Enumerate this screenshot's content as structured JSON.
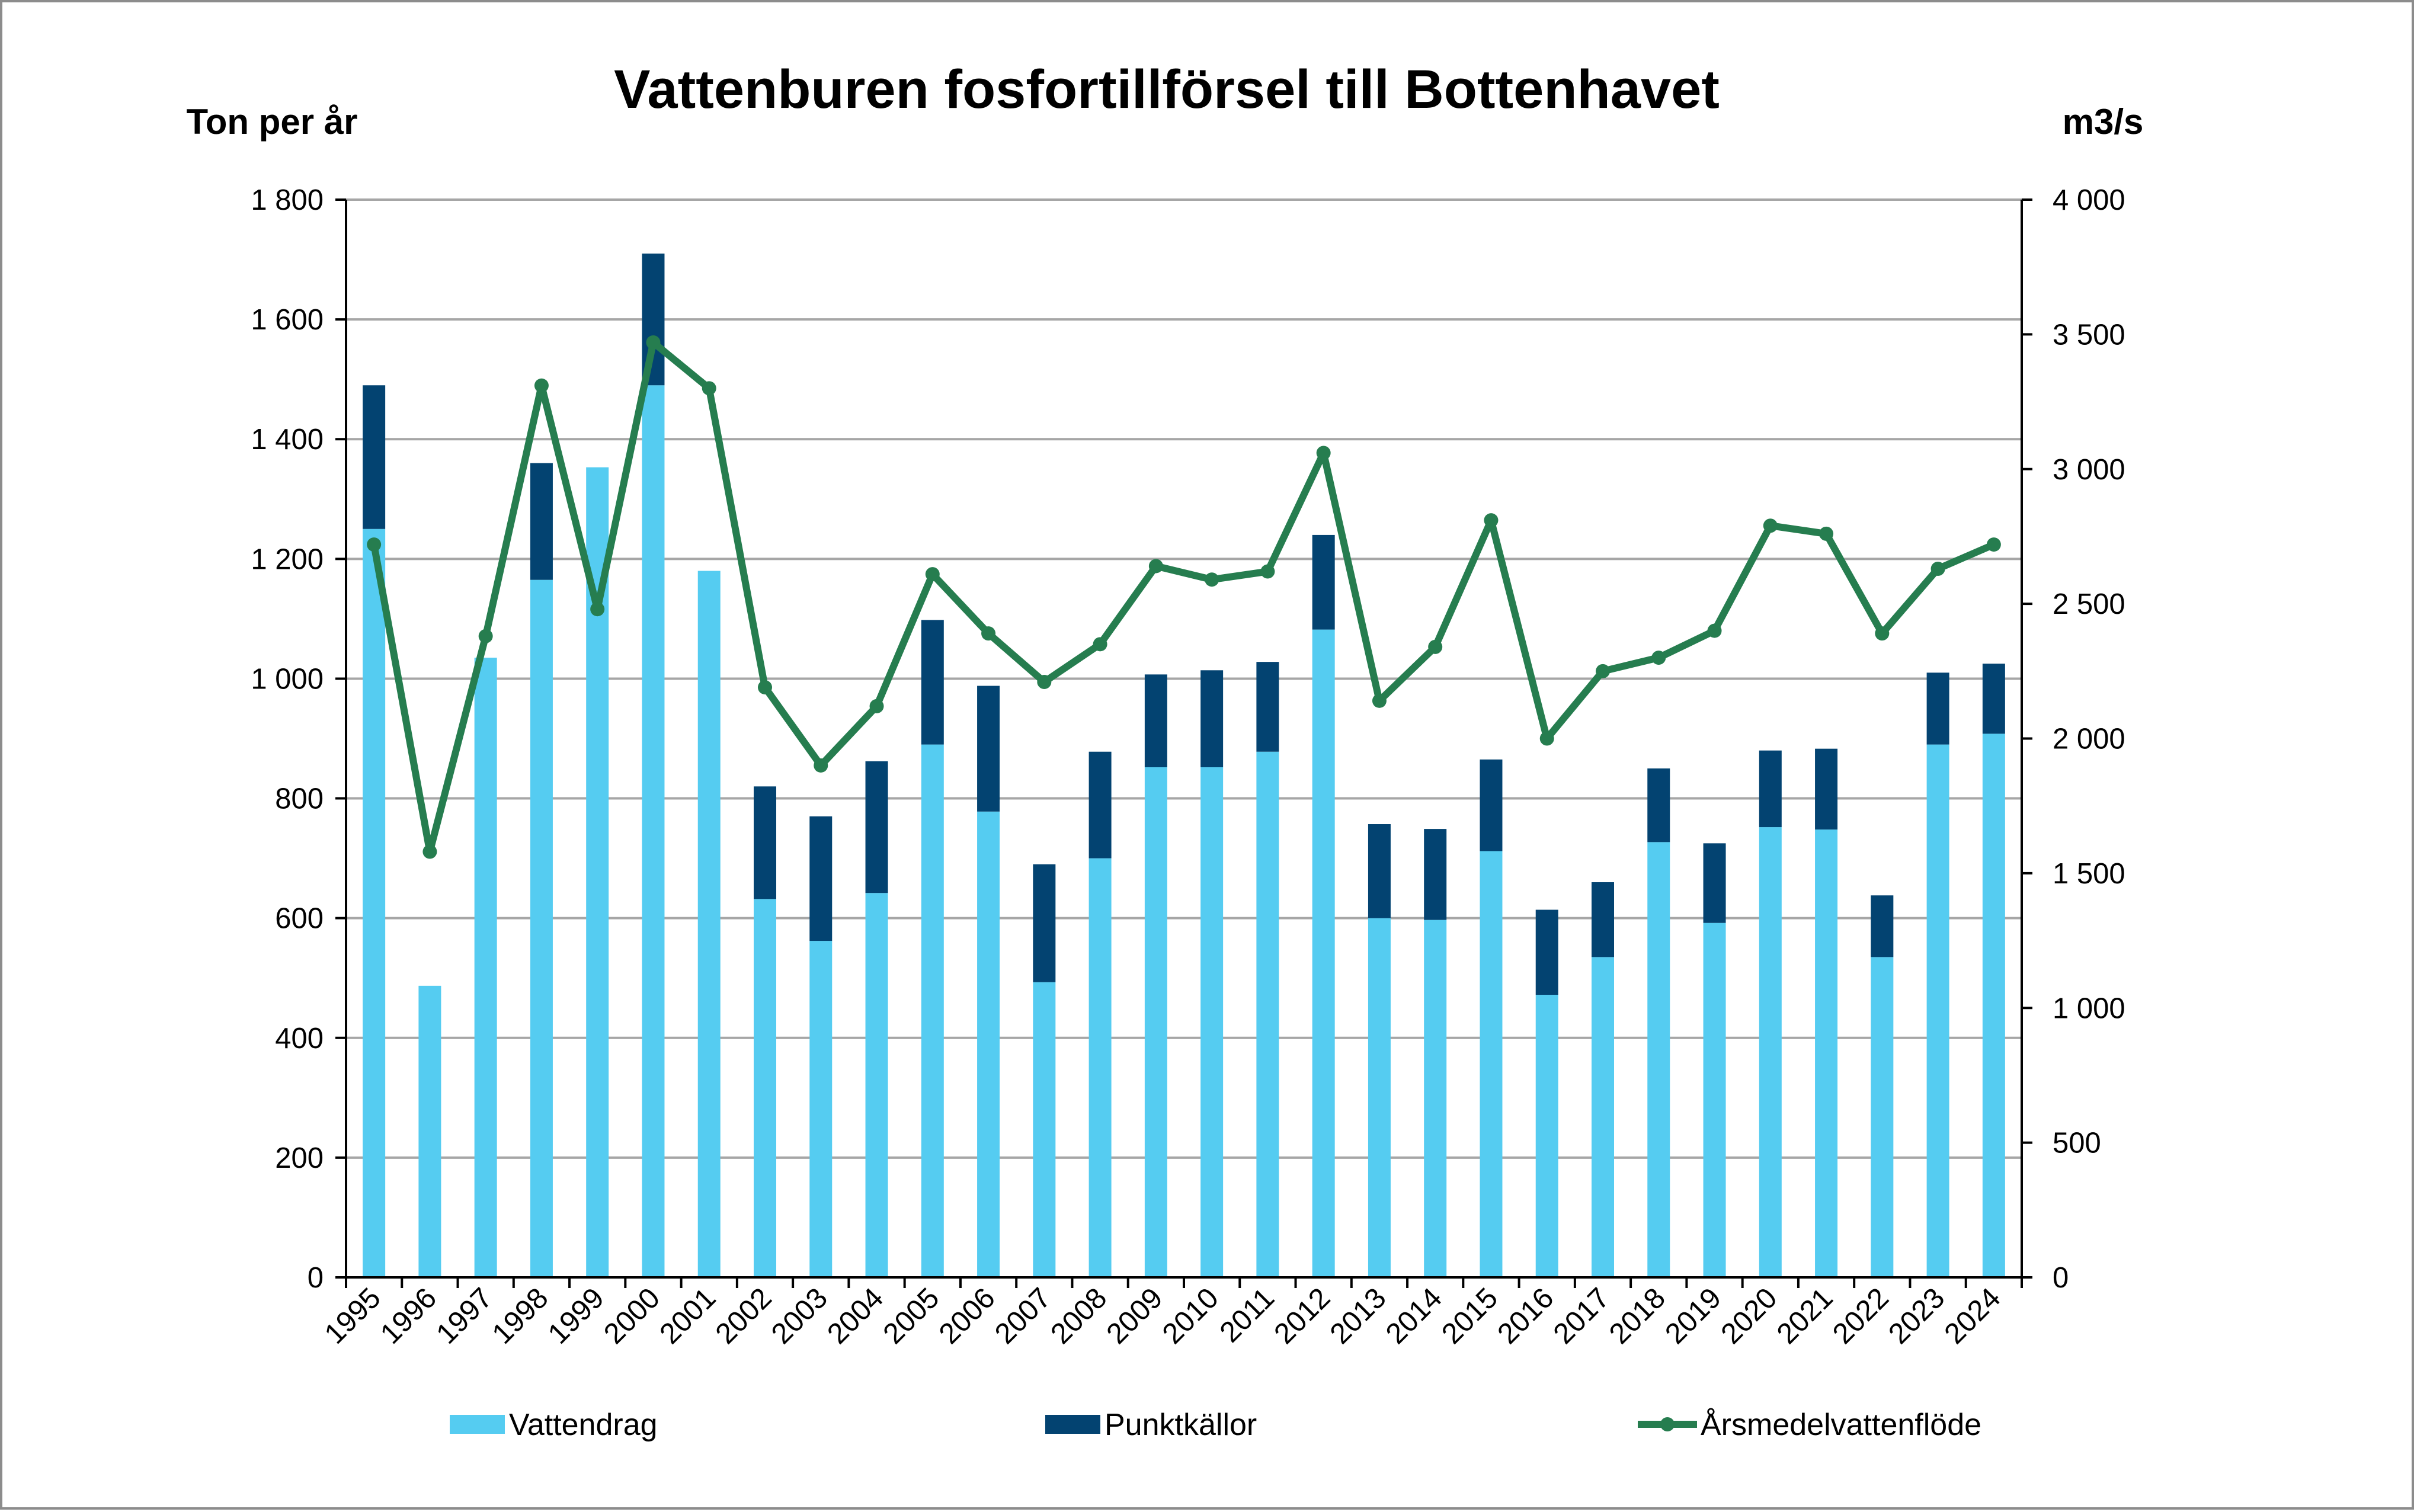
{
  "chart_data": {
    "type": "bar",
    "stacked": true,
    "title": "Vattenburen fosfortillförsel till Bottenhavet",
    "ylabel": "Ton per år",
    "y2label": "m3/s",
    "ylim": [
      0,
      1800
    ],
    "y2lim": [
      0,
      4000
    ],
    "yticks": [
      0,
      200,
      400,
      600,
      800,
      1000,
      1200,
      1400,
      1600,
      1800
    ],
    "y2ticks": [
      0,
      500,
      1000,
      1500,
      2000,
      2500,
      3000,
      3500,
      4000
    ],
    "grid": true,
    "legend_position": "bottom",
    "categories": [
      "1995",
      "1996",
      "1997",
      "1998",
      "1999",
      "2000",
      "2001",
      "2002",
      "2003",
      "2004",
      "2005",
      "2006",
      "2007",
      "2008",
      "2009",
      "2010",
      "2011",
      "2012",
      "2013",
      "2014",
      "2015",
      "2016",
      "2017",
      "2018",
      "2019",
      "2020",
      "2021",
      "2022",
      "2023",
      "2024"
    ],
    "series": [
      {
        "name": "Vattendrag",
        "type": "bar",
        "axis": "left",
        "color": "#55CCF1",
        "values": [
          1250,
          487,
          1035,
          1165,
          1353,
          1490,
          1180,
          632,
          562,
          642,
          890,
          778,
          493,
          700,
          852,
          852,
          878,
          1082,
          600,
          597,
          712,
          472,
          535,
          727,
          592,
          752,
          748,
          535,
          890,
          908
        ]
      },
      {
        "name": "Punktkällor",
        "type": "bar",
        "axis": "left",
        "color": "#034371",
        "values": [
          240,
          0,
          0,
          195,
          0,
          220,
          0,
          188,
          208,
          220,
          208,
          210,
          197,
          178,
          155,
          162,
          150,
          158,
          157,
          152,
          153,
          142,
          125,
          123,
          133,
          128,
          135,
          103,
          120,
          117
        ]
      },
      {
        "name": "Årsmedelvattenflöde",
        "type": "line",
        "axis": "right",
        "color": "#267D4F",
        "values": [
          2720,
          1580,
          2380,
          3310,
          2480,
          3470,
          3300,
          2190,
          1900,
          2120,
          2610,
          2390,
          2210,
          2350,
          2640,
          2590,
          2620,
          3060,
          2140,
          2340,
          2810,
          2000,
          2250,
          2300,
          2400,
          2790,
          2760,
          2390,
          2630,
          2720
        ]
      }
    ]
  }
}
